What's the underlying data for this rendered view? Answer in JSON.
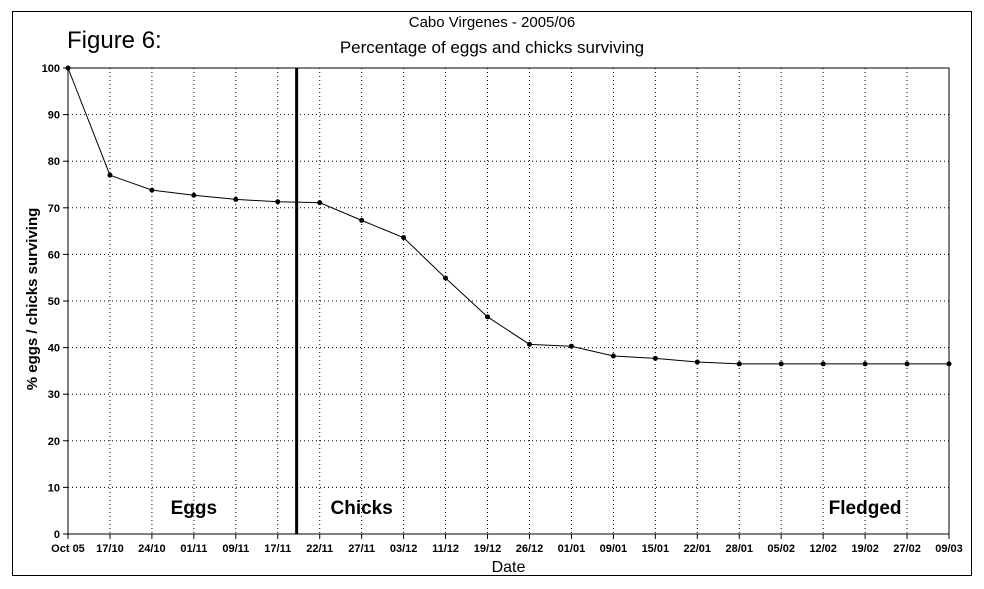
{
  "figure_label": "Figure 6:",
  "chart_data": {
    "type": "line",
    "title": "Cabo Virgenes - 2005/06",
    "subtitle": "Percentage of eggs and chicks surviving",
    "xlabel": "Date",
    "ylabel": "% eggs / chicks surviving",
    "categories": [
      "Oct 05",
      "17/10",
      "24/10",
      "01/11",
      "09/11",
      "17/11",
      "22/11",
      "27/11",
      "03/12",
      "11/12",
      "19/12",
      "26/12",
      "01/01",
      "09/01",
      "15/01",
      "22/01",
      "28/01",
      "05/02",
      "12/02",
      "19/02",
      "27/02",
      "09/03"
    ],
    "values": [
      100,
      77,
      73.8,
      72.7,
      71.8,
      71.3,
      71.1,
      67.3,
      63.6,
      54.9,
      46.6,
      40.7,
      40.3,
      38.2,
      37.7,
      36.9,
      36.5,
      36.5,
      36.5,
      36.5,
      36.5,
      36.5
    ],
    "ylim": [
      0,
      100
    ],
    "yticks": [
      0,
      10,
      20,
      30,
      40,
      50,
      60,
      70,
      80,
      90,
      100
    ],
    "grid": true,
    "divider_after_index": 5.45,
    "regions": [
      {
        "label": "Eggs",
        "at_index": 3
      },
      {
        "label": "Chicks",
        "at_index": 7
      },
      {
        "label": "Fledged",
        "at_index": 19
      }
    ],
    "line_color": "#000000"
  }
}
